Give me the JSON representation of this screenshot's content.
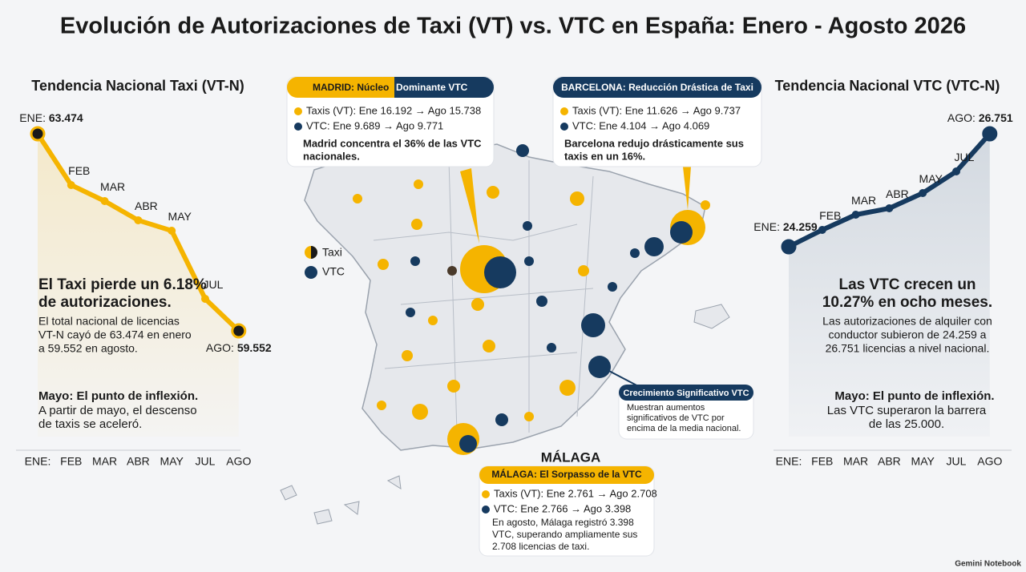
{
  "title": "Evolución de Autorizaciones de Taxi (VT) vs. VTC en España: Enero - Agosto 2026",
  "chart_data": [
    {
      "type": "line",
      "title": "Tendencia Nacional Taxi (VT-N)",
      "color": "#f5b400",
      "categories": [
        "ENE:",
        "FEB",
        "MAR",
        "ABR",
        "MAY",
        "JUL",
        "AGO"
      ],
      "point_labels": [
        "ENE:",
        "FEB",
        "MAR",
        "ABR",
        "MAY",
        "JUL",
        "AGO:"
      ],
      "values": [
        63474,
        62454,
        62135,
        61753,
        61545,
        60190,
        59552
      ],
      "value_labels": [
        "63.474",
        null,
        null,
        null,
        null,
        null,
        "59.552"
      ],
      "headline": [
        "El Taxi pierde un 6.18%",
        "de autorizaciones."
      ],
      "body": [
        "El total nacional de licencias",
        "VT-N cayó de 63.474 en enero",
        "a 59.552 en agosto."
      ],
      "note_title": "Mayo: El punto de inflexión.",
      "note_body": [
        "A partir de mayo, el descenso",
        "de taxis se aceleró."
      ]
    },
    {
      "type": "line",
      "title": "Tendencia Nacional VTC (VTC-N)",
      "color": "#163a5f",
      "categories": [
        "ENE:",
        "FEB",
        "MAR",
        "ABR",
        "MAY",
        "JUL",
        "AGO"
      ],
      "point_labels": [
        "ENE:",
        "FEB",
        "MAR",
        "ABR",
        "MAY",
        "JUL",
        "AGO:"
      ],
      "values": [
        24259,
        24630,
        24966,
        25107,
        25443,
        25920,
        26751
      ],
      "value_labels": [
        "24.259",
        null,
        null,
        null,
        null,
        null,
        "26.751"
      ],
      "headline": [
        "Las VTC crecen un",
        "10.27% en ocho meses."
      ],
      "body": [
        "Las autorizaciones de alquiler con",
        "conductor subieron de 24.259 a",
        "26.751 licencias a nivel nacional."
      ],
      "note_title": "Mayo: El punto de inflexión.",
      "note_body": [
        "Las VTC superaron la barrera",
        "de las 25.000."
      ]
    }
  ],
  "legend": {
    "taxi": "Taxi",
    "vtc": "VTC"
  },
  "callouts": {
    "madrid": {
      "title_a": "MADRID: Núcleo",
      "title_b": "Dominante VTC",
      "taxi": "Taxis (VT): Ene 16.192 → Ago 15.738",
      "vtc": "VTC: Ene 9.689 → Ago 9.771",
      "note": [
        "Madrid concentra el 36% de las VTC",
        "nacionales."
      ]
    },
    "barcelona": {
      "title": "BARCELONA: Reducción Drástica de Taxi",
      "taxi": "Taxis (VT): Ene 11.626 → Ago 9.737",
      "vtc": "VTC: Ene 4.104 → Ago 4.069",
      "note": [
        "Barcelona redujo drásticamente sus",
        "taxis en un 16%."
      ]
    },
    "growth": {
      "title": "Crecimiento Significativo VTC",
      "note": [
        "Muestran aumentos",
        "significativos de VTC por",
        "encima de la media nacional."
      ]
    },
    "malaga": {
      "label": "MÁLAGA",
      "title": "MÁLAGA: El Sorpasso de la VTC",
      "taxi": "Taxis (VT): Ene 2.761 → Ago 2.708",
      "vtc": "VTC: Ene 2.766 → Ago 3.398",
      "note": [
        "En agosto, Málaga registró 3.398",
        "VTC, superando ampliamente sus",
        "2.708 licencias de taxi."
      ]
    }
  },
  "footer": "Gemini Notebook"
}
